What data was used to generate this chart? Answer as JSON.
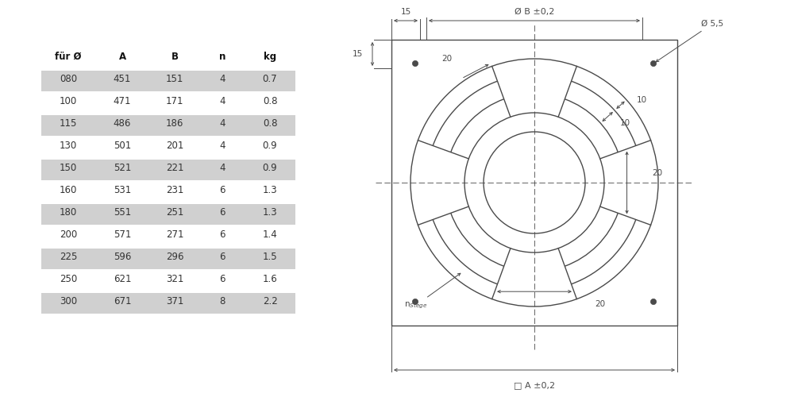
{
  "bg_color": "#ffffff",
  "line_color": "#4a4a4a",
  "dim_color": "#4a4a4a",
  "table_bg_alt": "#d0d0d0",
  "table_text_color": "#333333",
  "table_header_color": "#111111",
  "table_data": [
    [
      "für Ø",
      "A",
      "B",
      "n",
      "kg"
    ],
    [
      "080",
      "451",
      "151",
      "4",
      "0.7"
    ],
    [
      "100",
      "471",
      "171",
      "4",
      "0.8"
    ],
    [
      "115",
      "486",
      "186",
      "4",
      "0.8"
    ],
    [
      "130",
      "501",
      "201",
      "4",
      "0.9"
    ],
    [
      "150",
      "521",
      "221",
      "4",
      "0.9"
    ],
    [
      "160",
      "531",
      "231",
      "6",
      "1.3"
    ],
    [
      "180",
      "551",
      "251",
      "6",
      "1.3"
    ],
    [
      "200",
      "571",
      "271",
      "6",
      "1.4"
    ],
    [
      "225",
      "596",
      "296",
      "6",
      "1.5"
    ],
    [
      "250",
      "621",
      "321",
      "6",
      "1.6"
    ],
    [
      "300",
      "671",
      "371",
      "8",
      "2.2"
    ]
  ],
  "shaded_rows": [
    1,
    3,
    5,
    7,
    9,
    11
  ],
  "slot_half_deg": 20,
  "slot_centers_deg": [
    90,
    0,
    270,
    180
  ],
  "r1": 0.78,
  "r2": 0.68,
  "r3": 0.56,
  "r4": 0.44,
  "r5": 0.32,
  "sq": 0.9,
  "corner_r": 0.75
}
